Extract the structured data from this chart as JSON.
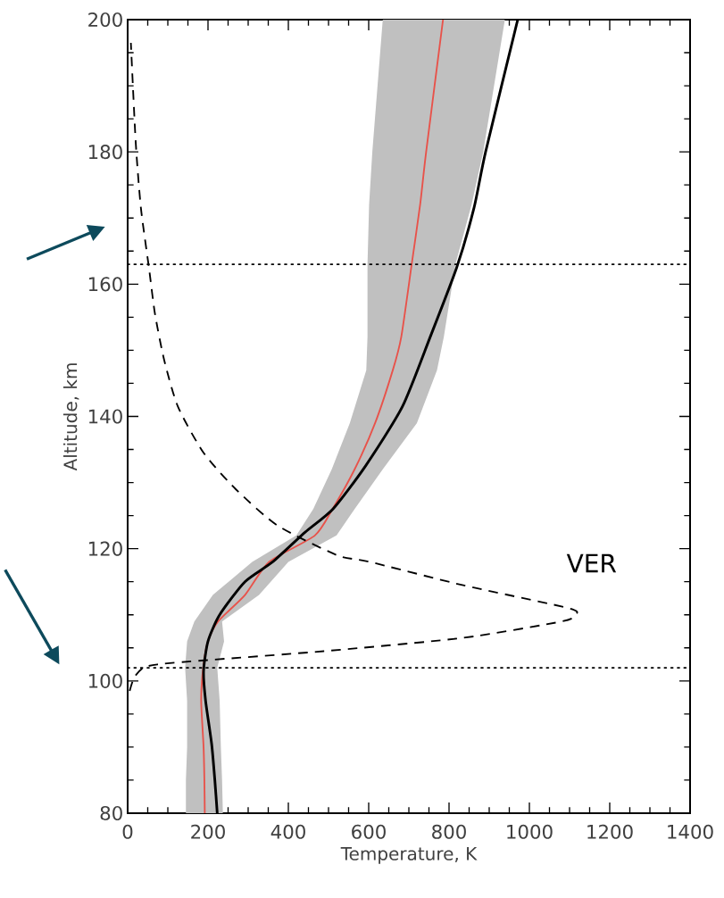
{
  "chart_data": {
    "type": "line",
    "xlabel": "Temperature, K",
    "ylabel": "Altitude, km",
    "xlim": [
      0,
      1400
    ],
    "ylim": [
      80,
      200
    ],
    "xticks": [
      0,
      200,
      400,
      600,
      800,
      1000,
      1200,
      1400
    ],
    "yticks": [
      80,
      100,
      120,
      140,
      160,
      180,
      200
    ],
    "series": [
      {
        "color": "#c0c0c0",
        "type": "area",
        "x": [
          145,
          145,
          148,
          148,
          143,
          148,
          166,
          212,
          310,
          420,
          462,
          508,
          553,
          594,
          597,
          597,
          601,
          609,
          635,
          939,
          885,
          856,
          816,
          787,
          770,
          720,
          635,
          565,
          520,
          400,
          327,
          235,
          240,
          223,
          229,
          232,
          235,
          237
        ],
        "values": [
          80,
          85,
          90,
          97,
          102,
          106,
          109,
          113,
          118,
          122,
          126,
          132,
          139,
          147,
          152,
          163,
          172,
          180,
          200,
          200,
          180,
          172,
          163,
          152,
          147,
          139,
          132,
          126,
          122,
          118,
          113,
          109,
          106,
          102,
          97,
          90,
          85,
          80
        ]
      },
      {
        "color": "#e8524a",
        "x": [
          192,
          191,
          189,
          183,
          188,
          200,
          225,
          292,
          352,
          466,
          510,
          565,
          616,
          660,
          681,
          707,
          728,
          743,
          785
        ],
        "values": [
          80,
          85,
          90,
          97,
          102,
          106,
          109,
          113,
          118,
          122,
          126,
          132,
          139,
          147,
          152,
          163,
          172,
          180,
          200
        ]
      },
      {
        "color": "#000000",
        "x": [
          223,
          217,
          209,
          194,
          189,
          200,
          229,
          292,
          361,
          442,
          511,
          592,
          684,
          753,
          819,
          862,
          891,
          971
        ],
        "values": [
          80,
          85,
          90.5,
          97,
          101.5,
          106,
          110,
          115,
          118,
          122.5,
          126,
          132.5,
          141.5,
          152,
          162.5,
          171.5,
          180,
          200
        ]
      },
      {
        "color": "#000000",
        "line_style": "dashed",
        "x": [
          5,
          16,
          39,
          74,
          166,
          488,
          833,
          1081,
          1115,
          1098,
          833,
          603,
          522,
          373,
          269,
          189,
          125,
          91,
          68,
          53,
          33,
          20,
          8
        ],
        "values": [
          98.5,
          100.5,
          102,
          102.5,
          103,
          104.5,
          106.5,
          109,
          110,
          111,
          114.5,
          118,
          119,
          123.5,
          129,
          134.5,
          141.5,
          148.5,
          155.5,
          162.5,
          171.5,
          181.5,
          196.5
        ]
      }
    ],
    "ref_lines": [
      {
        "axis": "y",
        "value": 163,
        "color": "#000000",
        "line_style": "dotted"
      },
      {
        "axis": "y",
        "value": 102,
        "color": "#000000",
        "line_style": "dotted"
      }
    ],
    "annotations": [
      "VER"
    ]
  }
}
